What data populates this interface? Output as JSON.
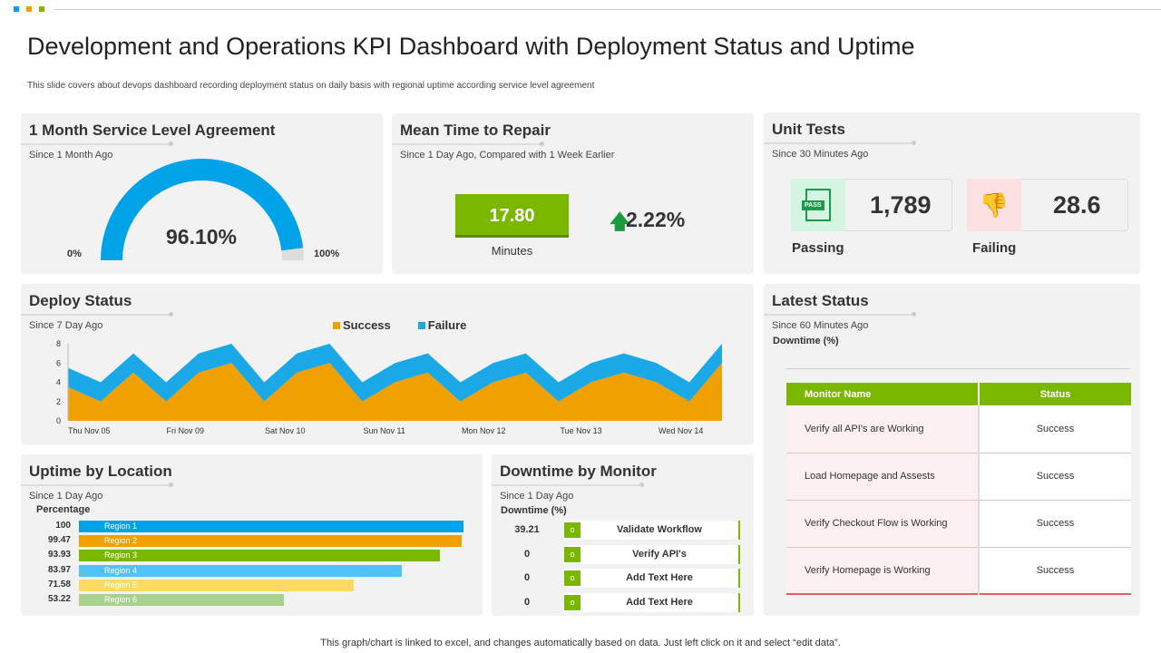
{
  "title": "Development and Operations KPI Dashboard with Deployment Status and Uptime",
  "subtitle": "This slide covers about devops dashboard recording deployment status on daily basis with regional uptime according service level agreement",
  "footer": "This graph/chart is linked to excel, and changes automatically based on data. Just left click on it and select “edit data”.",
  "colors": {
    "blue": "#00a3e8",
    "orange": "#f0a000",
    "green": "#7ab800",
    "red": "#c00000"
  },
  "sla": {
    "title": "1 Month Service Level Agreement",
    "since": "Since 1 Month Ago",
    "value": "96.10%",
    "percent": 96.1,
    "min": "0%",
    "max": "100%"
  },
  "mttr": {
    "title": "Mean Time to Repair",
    "since": "Since 1 Day Ago, Compared with 1 Week Earlier",
    "value": "17.80",
    "unit": "Minutes",
    "change": "2.22%",
    "change_icon": "arrow-up-icon"
  },
  "unit_tests": {
    "title": "Unit Tests",
    "since": "Since 30 Minutes Ago",
    "passing_value": "1,789",
    "passing_label": "Passing",
    "passing_icon_text": "PASS",
    "failing_value": "28.6",
    "failing_label": "Failing"
  },
  "deploy": {
    "title": "Deploy Status",
    "since": "Since 7 Day Ago"
  },
  "chart_data": {
    "type": "area",
    "stacked": true,
    "ylim": [
      0,
      8
    ],
    "yticks": [
      0,
      2,
      4,
      6,
      8
    ],
    "xtick_labels": [
      "Thu Nov 05",
      "Fri Nov 09",
      "Sat Nov 10",
      "Sun Nov 11",
      "Mon Nov 12",
      "Tue Nov 13",
      "Wed Nov 14"
    ],
    "legend": "top-center",
    "series": [
      {
        "name": "Success",
        "color": "#f0a000",
        "values": [
          3.5,
          2,
          5,
          2,
          5,
          6,
          2,
          5,
          6,
          2,
          4,
          5,
          2,
          4,
          5,
          2,
          4,
          5,
          4,
          2,
          6
        ]
      },
      {
        "name": "Failure",
        "color": "#1aa9e6",
        "values": [
          2,
          2,
          2,
          2,
          2,
          2,
          2,
          2,
          2,
          2,
          2,
          2,
          2,
          2,
          2,
          2,
          2,
          2,
          2,
          2,
          2
        ]
      }
    ]
  },
  "uptime": {
    "title": "Uptime by Location",
    "since": "Since 1 Day Ago",
    "axis_label": "Percentage",
    "bars": [
      {
        "label": "Region 1",
        "value": 100,
        "display": "100",
        "color": "#00a3e8"
      },
      {
        "label": "Region 2",
        "value": 99.47,
        "display": "99.47",
        "color": "#f0a000"
      },
      {
        "label": "Region 3",
        "value": 93.93,
        "display": "93.93",
        "color": "#7ab800"
      },
      {
        "label": "Region 4",
        "value": 83.97,
        "display": "83.97",
        "color": "#4fc3f7"
      },
      {
        "label": "Region 5",
        "value": 71.58,
        "display": "71.58",
        "color": "#ffd966"
      },
      {
        "label": "Region 6",
        "value": 53.22,
        "display": "53.22",
        "color": "#a9d18e"
      }
    ]
  },
  "downtime": {
    "title": "Downtime by Monitor",
    "since": "Since 1 Day Ago",
    "axis_label": "Downtime (%)",
    "items": [
      {
        "value": "39.21",
        "label": "Validate Workflow"
      },
      {
        "value": "0",
        "label": "Verify API's"
      },
      {
        "value": "0",
        "label": "Add Text Here"
      },
      {
        "value": "0",
        "label": "Add Text Here"
      }
    ]
  },
  "latest": {
    "title": "Latest Status",
    "since": "Since 60 Minutes Ago",
    "axis_label": "Downtime (%)",
    "headers": [
      "Monitor Name",
      "Status"
    ],
    "rows": [
      [
        "Verify all API's are Working",
        "Success"
      ],
      [
        "Load Homepage and Assests",
        "Success"
      ],
      [
        "Verify Checkout Flow  is Working",
        "Success"
      ],
      [
        "Verify Homepage is Working",
        "Success"
      ]
    ]
  }
}
